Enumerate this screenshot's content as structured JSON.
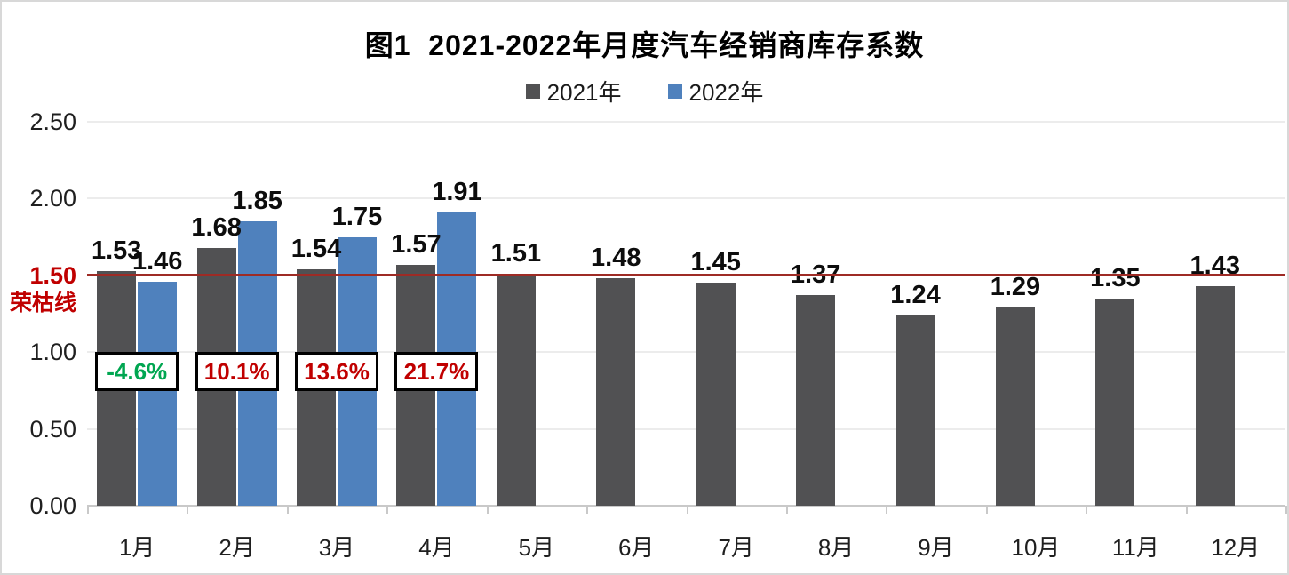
{
  "chart_data": {
    "type": "bar",
    "title": "图1  2021-2022年月度汽车经销商库存系数",
    "categories": [
      "1月",
      "2月",
      "3月",
      "4月",
      "5月",
      "6月",
      "7月",
      "8月",
      "9月",
      "10月",
      "11月",
      "12月"
    ],
    "series": [
      {
        "name": "2021年",
        "color": "#515153",
        "values": [
          1.53,
          1.68,
          1.54,
          1.57,
          1.51,
          1.48,
          1.45,
          1.37,
          1.24,
          1.29,
          1.35,
          1.43
        ]
      },
      {
        "name": "2022年",
        "color": "#4F81BD",
        "values": [
          1.46,
          1.85,
          1.75,
          1.91,
          null,
          null,
          null,
          null,
          null,
          null,
          null,
          null
        ]
      }
    ],
    "change_labels": [
      {
        "text": "-4.6%",
        "color": "#00A651"
      },
      {
        "text": "10.1%",
        "color": "#C00000"
      },
      {
        "text": "13.6%",
        "color": "#C00000"
      },
      {
        "text": "21.7%",
        "color": "#C00000"
      }
    ],
    "ylim": [
      0,
      2.5
    ],
    "yticks": [
      "0.00",
      "0.50",
      "1.00",
      "1.50",
      "2.00",
      "2.50"
    ],
    "reference_line": {
      "value": 1.5,
      "label": "1.50",
      "sublabel": "荣枯线",
      "line_color": "#9E2B25",
      "label_color": "#C00000"
    },
    "grid": true,
    "legend_position": "top"
  }
}
